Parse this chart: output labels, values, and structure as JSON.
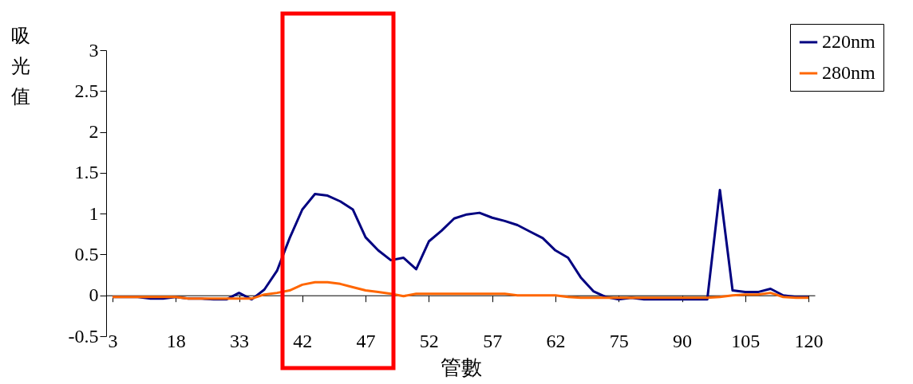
{
  "chart_data": {
    "type": "line",
    "xlabel": "管數",
    "ylabel": "吸光值",
    "categories": [
      "3",
      null,
      null,
      null,
      null,
      "18",
      null,
      null,
      null,
      null,
      "33",
      null,
      null,
      null,
      null,
      "42",
      null,
      null,
      null,
      null,
      "47",
      null,
      null,
      null,
      null,
      "52",
      null,
      null,
      null,
      null,
      "57",
      null,
      null,
      null,
      null,
      "62",
      null,
      null,
      null,
      null,
      "75",
      null,
      null,
      null,
      null,
      "90",
      null,
      null,
      null,
      null,
      "105",
      null,
      null,
      null,
      null,
      "120"
    ],
    "series": [
      {
        "name": "220nm",
        "color": "#000080",
        "values": [
          -0.02,
          -0.02,
          -0.02,
          -0.04,
          -0.04,
          -0.02,
          -0.04,
          -0.04,
          -0.05,
          -0.05,
          0.03,
          -0.05,
          0.07,
          0.3,
          0.7,
          1.05,
          1.24,
          1.22,
          1.15,
          1.05,
          0.71,
          0.55,
          0.43,
          0.46,
          0.32,
          0.66,
          0.79,
          0.94,
          0.99,
          1.01,
          0.95,
          0.91,
          0.86,
          0.78,
          0.7,
          0.55,
          0.46,
          0.22,
          0.05,
          -0.02,
          -0.05,
          -0.03,
          -0.05,
          -0.05,
          -0.05,
          -0.05,
          -0.05,
          -0.05,
          1.29,
          0.06,
          0.04,
          0.04,
          0.08,
          0.0,
          -0.02,
          -0.02
        ]
      },
      {
        "name": "280nm",
        "color": "#ff6600",
        "values": [
          -0.02,
          -0.02,
          -0.02,
          -0.02,
          -0.02,
          -0.02,
          -0.04,
          -0.04,
          -0.04,
          -0.04,
          -0.04,
          -0.04,
          0.01,
          0.03,
          0.06,
          0.13,
          0.16,
          0.16,
          0.14,
          0.1,
          0.06,
          0.04,
          0.02,
          -0.01,
          0.02,
          0.02,
          0.02,
          0.02,
          0.02,
          0.02,
          0.02,
          0.02,
          0.0,
          0.0,
          0.0,
          0.0,
          -0.02,
          -0.03,
          -0.03,
          -0.03,
          -0.03,
          -0.03,
          -0.03,
          -0.03,
          -0.03,
          -0.03,
          -0.03,
          -0.03,
          -0.02,
          0.0,
          0.01,
          0.01,
          0.03,
          -0.02,
          -0.03,
          -0.03
        ]
      }
    ],
    "ylim": [
      -0.5,
      3
    ],
    "yticks": [
      -0.5,
      0,
      0.5,
      1,
      1.5,
      2,
      2.5,
      3
    ],
    "grid": false,
    "legend": "top right",
    "marker": "none",
    "line_style": "solid"
  }
}
